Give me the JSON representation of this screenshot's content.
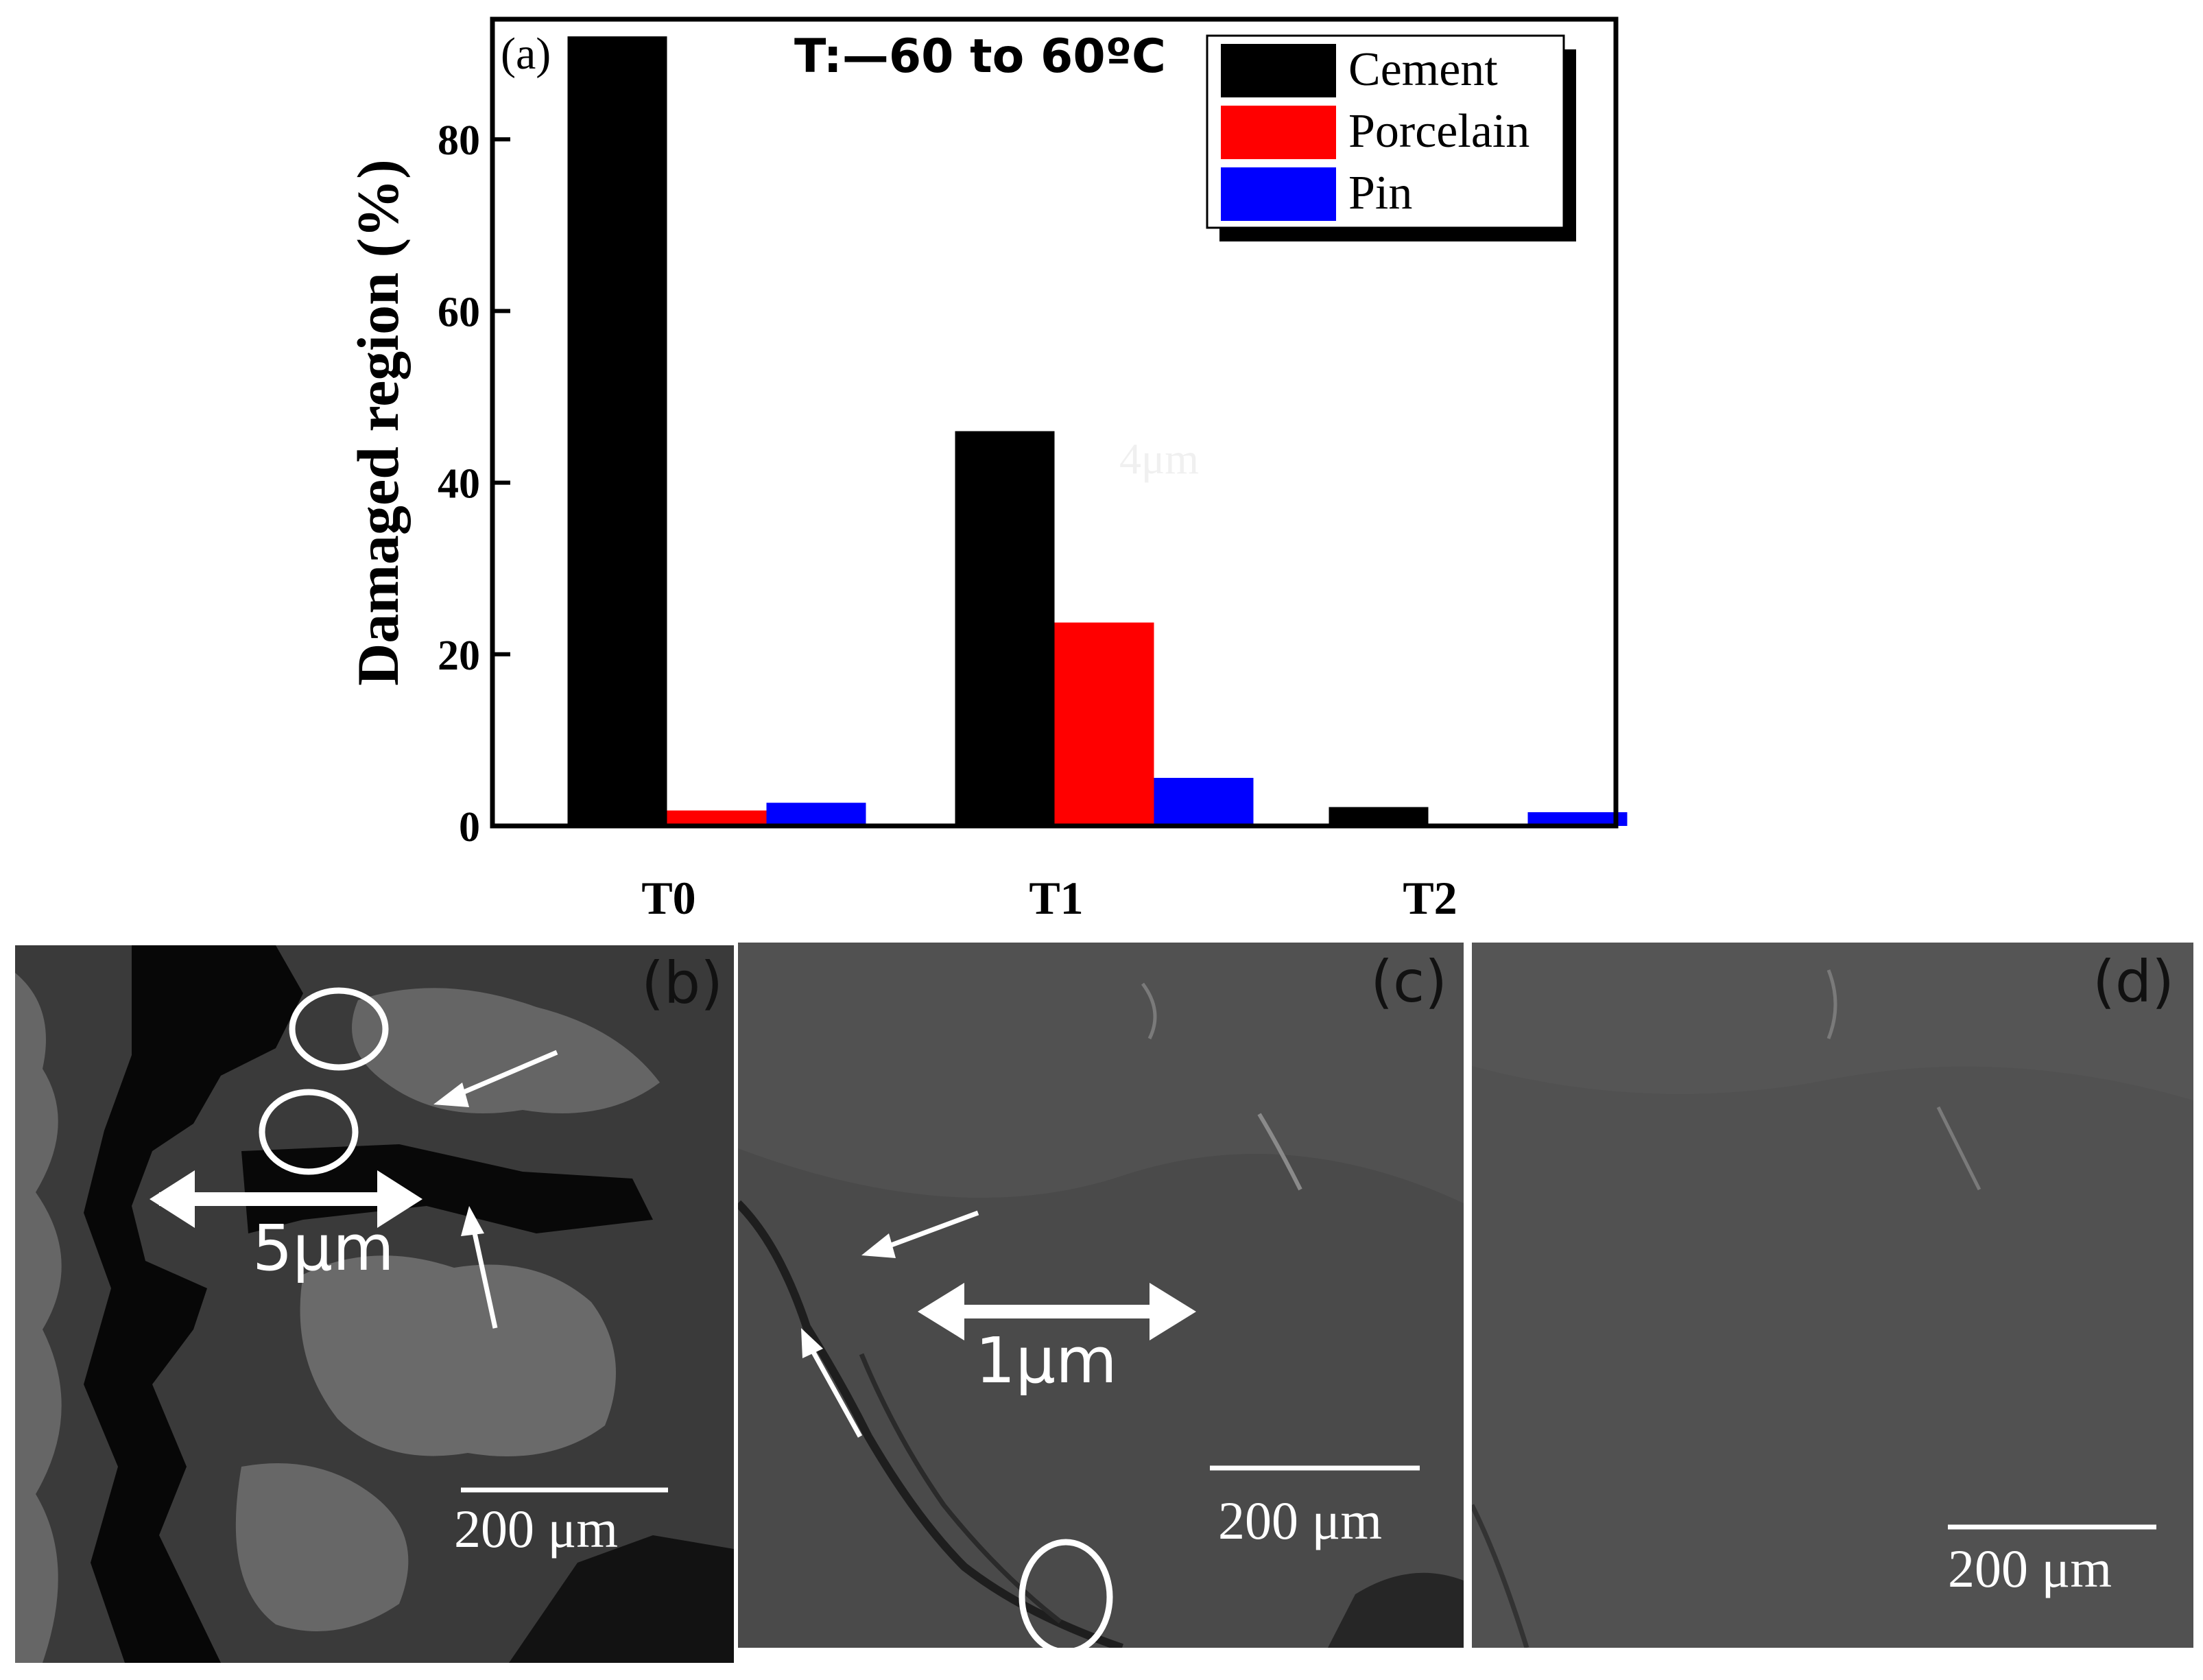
{
  "chart_data": {
    "type": "bar",
    "panel_label": "(a)",
    "title": "T:—60 to 60ºC",
    "ylabel": "Damaged region (%)",
    "xlabel": "",
    "categories": [
      "T0",
      "T1",
      "T2"
    ],
    "ylim": [
      0,
      94
    ],
    "yticks": [
      0,
      20,
      40,
      60,
      80
    ],
    "series": [
      {
        "name": "Cement",
        "color": "#000000",
        "values": [
          92,
          46,
          2.2
        ]
      },
      {
        "name": "Porcelain",
        "color": "#ff0000",
        "values": [
          1.8,
          23.7,
          0
        ]
      },
      {
        "name": "Pin",
        "color": "#0000ff",
        "values": [
          2.7,
          5.6,
          1.6
        ]
      }
    ],
    "legend_position": "top-right",
    "grid": false,
    "faint_annotation": "4μm"
  },
  "micrographs": {
    "b": {
      "label": "(b)",
      "scale_bar": "200 μm",
      "measure": "5μm",
      "tint": "#3a3a3a"
    },
    "c": {
      "label": "(c)",
      "scale_bar": "200 μm",
      "measure": "1μm",
      "tint": "#4a4a4a"
    },
    "d": {
      "label": "(d)",
      "scale_bar": "200 μm",
      "tint": "#555555"
    }
  }
}
